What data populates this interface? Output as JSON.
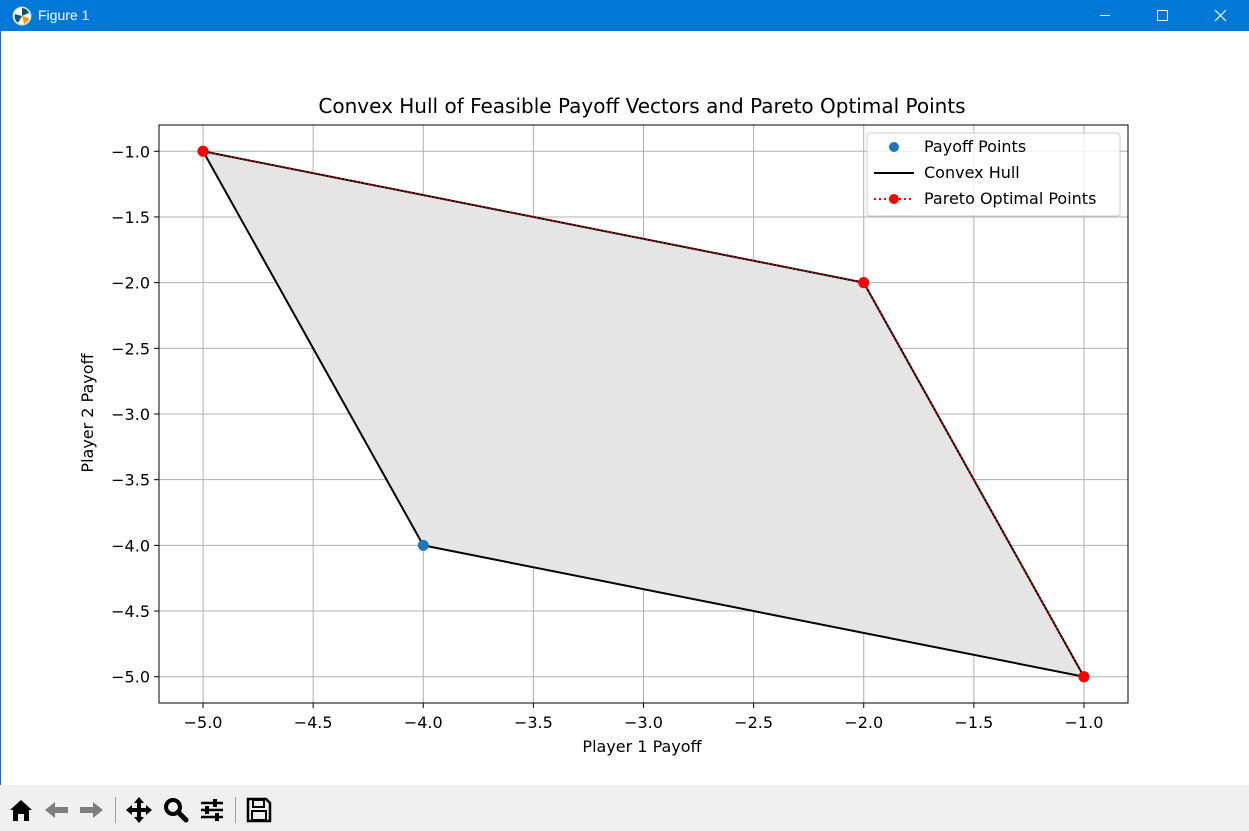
{
  "window": {
    "title": "Figure 1"
  },
  "chart_data": {
    "type": "scatter",
    "title": "Convex Hull of Feasible Payoff Vectors and Pareto Optimal Points",
    "xlabel": "Player 1 Payoff",
    "ylabel": "Player 2 Payoff",
    "xlim": [
      -5.2,
      -0.8
    ],
    "ylim": [
      -5.2,
      -0.8
    ],
    "xticks": [
      -5.0,
      -4.5,
      -4.0,
      -3.5,
      -3.0,
      -2.5,
      -2.0,
      -1.5,
      -1.0
    ],
    "yticks": [
      -1.0,
      -1.5,
      -2.0,
      -2.5,
      -3.0,
      -3.5,
      -4.0,
      -4.5,
      -5.0
    ],
    "xtick_labels": [
      "−5.0",
      "−4.5",
      "−4.0",
      "−3.5",
      "−3.0",
      "−2.5",
      "−2.0",
      "−1.5",
      "−1.0"
    ],
    "ytick_labels": [
      "−1.0",
      "−1.5",
      "−2.0",
      "−2.5",
      "−3.0",
      "−3.5",
      "−4.0",
      "−4.5",
      "−5.0"
    ],
    "grid": true,
    "legend_position": "top-right",
    "series": [
      {
        "name": "Payoff Points",
        "type": "scatter",
        "color": "#1f77b4",
        "x": [
          -5,
          -4,
          -2,
          -1
        ],
        "y": [
          -1,
          -4,
          -2,
          -5
        ]
      },
      {
        "name": "Convex Hull",
        "type": "line",
        "color": "#000000",
        "x": [
          -5,
          -4,
          -1,
          -2,
          -5
        ],
        "y": [
          -1,
          -4,
          -5,
          -2,
          -1
        ]
      },
      {
        "name": "Pareto Optimal Points",
        "type": "line-dotted-markers",
        "color": "#ff0000",
        "x": [
          -5,
          -2,
          -1
        ],
        "y": [
          -1,
          -2,
          -5
        ]
      }
    ],
    "fill": {
      "color": "#e5e5e5",
      "x": [
        -5,
        -4,
        -1,
        -2
      ],
      "y": [
        -1,
        -4,
        -5,
        -2
      ]
    }
  },
  "toolbar": {
    "buttons": [
      "home-icon",
      "back-icon",
      "forward-icon",
      "pan-icon",
      "zoom-icon",
      "configure-icon",
      "save-icon"
    ]
  }
}
